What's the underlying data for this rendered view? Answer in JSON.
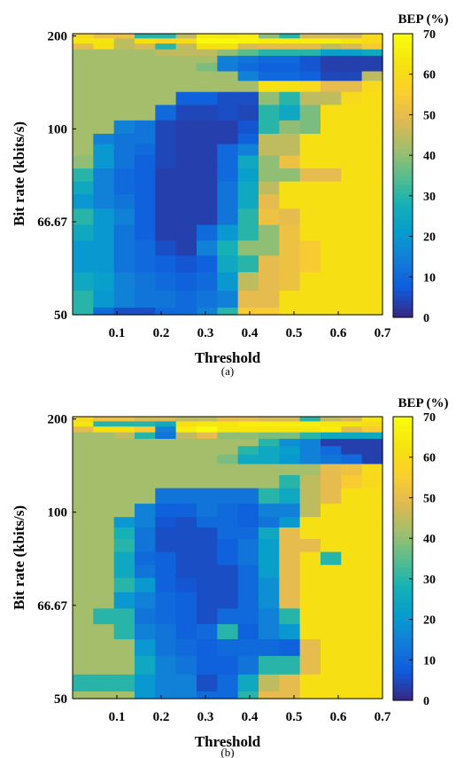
{
  "chart_data": [
    {
      "type": "heatmap",
      "panel_label": "(a)",
      "xlabel": "Threshold",
      "ylabel": "Bit rate (kbits/s)",
      "colorbar_title": "BEP (%)",
      "xlim": [
        0.0,
        0.7
      ],
      "ylim": [
        50,
        205
      ],
      "y_scale": "reciprocal",
      "clim": [
        0,
        70
      ],
      "colormap": "parula",
      "grid": false,
      "x_ticks": [
        0.1,
        0.2,
        0.3,
        0.4,
        0.5,
        0.6,
        0.7
      ],
      "x_tick_labels": [
        "0.1",
        "0.2",
        "0.3",
        "0.4",
        "0.5",
        "0.6",
        "0.7"
      ],
      "y_ticks": [
        50,
        66.67,
        100,
        200
      ],
      "y_tick_labels": [
        "50",
        "66.67",
        "100",
        "200"
      ],
      "colorbar_ticks": [
        0,
        10,
        20,
        30,
        40,
        50,
        60,
        70
      ],
      "colorbar_tick_labels": [
        "0",
        "10",
        "20",
        "30",
        "40",
        "50",
        "60",
        "70"
      ],
      "rows": [
        {
          "bit_rate": 200,
          "bep": [
            60,
            52,
            52,
            30,
            30,
            45,
            65,
            64,
            66,
            40,
            30,
            48,
            48,
            48,
            60
          ]
        },
        {
          "bit_rate": 190,
          "bep": [
            64,
            64,
            45,
            62,
            58,
            60,
            70,
            70,
            68,
            66,
            66,
            66,
            66,
            64,
            60
          ]
        },
        {
          "bit_rate": 180,
          "bep": [
            50,
            62,
            45,
            48,
            30,
            45,
            62,
            62,
            48,
            50,
            50,
            50,
            45,
            48,
            55
          ]
        },
        {
          "bit_rate": 170,
          "bep": [
            42,
            42,
            42,
            42,
            45,
            45,
            45,
            40,
            35,
            30,
            30,
            30,
            22,
            22,
            25
          ]
        },
        {
          "bit_rate": 160,
          "bep": [
            42,
            42,
            42,
            42,
            42,
            42,
            42,
            15,
            12,
            10,
            10,
            6,
            3,
            3,
            3
          ]
        },
        {
          "bit_rate": 150,
          "bep": [
            42,
            42,
            42,
            42,
            42,
            42,
            38,
            14,
            10,
            8,
            8,
            6,
            3,
            3,
            3
          ]
        },
        {
          "bit_rate": 140,
          "bep": [
            42,
            42,
            42,
            42,
            42,
            42,
            42,
            42,
            15,
            10,
            10,
            8,
            4,
            4,
            45
          ]
        },
        {
          "bit_rate": 130,
          "bep": [
            42,
            42,
            42,
            42,
            42,
            42,
            42,
            42,
            42,
            62,
            62,
            60,
            50,
            50,
            60
          ]
        },
        {
          "bit_rate": 120,
          "bep": [
            42,
            42,
            42,
            42,
            42,
            8,
            8,
            5,
            5,
            40,
            30,
            45,
            45,
            60,
            62
          ]
        },
        {
          "bit_rate": 110,
          "bep": [
            42,
            42,
            42,
            42,
            10,
            4,
            4,
            5,
            4,
            30,
            25,
            38,
            62,
            62,
            62
          ]
        },
        {
          "bit_rate": 100,
          "bep": [
            42,
            42,
            15,
            12,
            4,
            3,
            3,
            3,
            6,
            30,
            40,
            38,
            62,
            62,
            62
          ]
        },
        {
          "bit_rate": 95,
          "bep": [
            42,
            15,
            12,
            12,
            4,
            3,
            3,
            3,
            8,
            45,
            45,
            62,
            62,
            62,
            62
          ]
        },
        {
          "bit_rate": 90,
          "bep": [
            42,
            20,
            12,
            10,
            4,
            3,
            3,
            10,
            15,
            45,
            45,
            62,
            62,
            62,
            62
          ]
        },
        {
          "bit_rate": 85,
          "bep": [
            40,
            20,
            12,
            8,
            4,
            3,
            3,
            10,
            25,
            40,
            52,
            62,
            62,
            62,
            62
          ]
        },
        {
          "bit_rate": 80,
          "bep": [
            30,
            15,
            10,
            8,
            3,
            3,
            3,
            10,
            22,
            40,
            40,
            50,
            50,
            62,
            62
          ]
        },
        {
          "bit_rate": 76,
          "bep": [
            25,
            15,
            10,
            8,
            3,
            3,
            3,
            12,
            25,
            45,
            62,
            62,
            62,
            62,
            62
          ]
        },
        {
          "bit_rate": 72,
          "bep": [
            20,
            15,
            12,
            8,
            3,
            3,
            3,
            12,
            25,
            50,
            62,
            62,
            62,
            62,
            62
          ]
        },
        {
          "bit_rate": 68,
          "bep": [
            30,
            20,
            15,
            8,
            3,
            3,
            3,
            12,
            30,
            52,
            50,
            62,
            62,
            62,
            62
          ]
        },
        {
          "bit_rate": 64,
          "bep": [
            25,
            20,
            12,
            8,
            3,
            3,
            10,
            20,
            30,
            40,
            52,
            62,
            62,
            62,
            62
          ]
        },
        {
          "bit_rate": 61,
          "bep": [
            20,
            20,
            12,
            10,
            5,
            3,
            15,
            28,
            40,
            40,
            52,
            55,
            62,
            62,
            62
          ]
        },
        {
          "bit_rate": 58,
          "bep": [
            20,
            20,
            12,
            10,
            8,
            6,
            8,
            25,
            30,
            50,
            52,
            55,
            62,
            62,
            62
          ]
        },
        {
          "bit_rate": 55,
          "bep": [
            25,
            22,
            15,
            12,
            10,
            8,
            10,
            20,
            45,
            50,
            52,
            62,
            62,
            62,
            62
          ]
        },
        {
          "bit_rate": 52,
          "bep": [
            30,
            20,
            15,
            12,
            12,
            10,
            12,
            15,
            50,
            50,
            62,
            62,
            62,
            62,
            62
          ]
        },
        {
          "bit_rate": 50,
          "bep": [
            30,
            10,
            5,
            5,
            10,
            10,
            15,
            30,
            55,
            55,
            62,
            62,
            62,
            62,
            62
          ]
        }
      ]
    },
    {
      "type": "heatmap",
      "panel_label": "(b)",
      "xlabel": "Threshold",
      "ylabel": "Bit rate (kbits/s)",
      "colorbar_title": "BEP (%)",
      "xlim": [
        0.0,
        0.7
      ],
      "ylim": [
        50,
        205
      ],
      "y_scale": "reciprocal",
      "clim": [
        0,
        70
      ],
      "colormap": "parula",
      "grid": false,
      "x_ticks": [
        0.1,
        0.2,
        0.3,
        0.4,
        0.5,
        0.6,
        0.7
      ],
      "x_tick_labels": [
        "0.1",
        "0.2",
        "0.3",
        "0.4",
        "0.5",
        "0.6",
        "0.7"
      ],
      "y_ticks": [
        50,
        66.67,
        100,
        200
      ],
      "y_tick_labels": [
        "50",
        "66.67",
        "100",
        "200"
      ],
      "colorbar_ticks": [
        0,
        10,
        20,
        30,
        40,
        50,
        60,
        70
      ],
      "colorbar_tick_labels": [
        "0",
        "10",
        "20",
        "30",
        "40",
        "50",
        "60",
        "70"
      ],
      "rows": [
        {
          "bit_rate": 200,
          "bep": [
            60,
            52,
            52,
            48,
            48,
            45,
            45,
            50,
            50,
            48,
            48,
            30,
            45,
            48,
            64
          ]
        },
        {
          "bit_rate": 190,
          "bep": [
            64,
            30,
            30,
            30,
            25,
            62,
            64,
            64,
            66,
            66,
            66,
            66,
            64,
            64,
            60
          ]
        },
        {
          "bit_rate": 180,
          "bep": [
            50,
            62,
            62,
            55,
            15,
            66,
            70,
            64,
            64,
            64,
            64,
            64,
            66,
            50,
            55
          ]
        },
        {
          "bit_rate": 170,
          "bep": [
            42,
            42,
            45,
            30,
            12,
            45,
            50,
            40,
            40,
            38,
            38,
            30,
            25,
            25,
            25
          ]
        },
        {
          "bit_rate": 160,
          "bep": [
            42,
            42,
            42,
            42,
            42,
            42,
            42,
            42,
            42,
            30,
            18,
            15,
            3,
            3,
            3
          ]
        },
        {
          "bit_rate": 150,
          "bep": [
            42,
            42,
            42,
            42,
            42,
            42,
            42,
            42,
            30,
            25,
            22,
            15,
            10,
            3,
            3
          ]
        },
        {
          "bit_rate": 140,
          "bep": [
            42,
            42,
            42,
            42,
            42,
            42,
            42,
            38,
            25,
            25,
            20,
            15,
            12,
            10,
            3
          ]
        },
        {
          "bit_rate": 130,
          "bep": [
            42,
            42,
            42,
            42,
            42,
            42,
            42,
            42,
            42,
            42,
            42,
            42,
            50,
            52,
            60
          ]
        },
        {
          "bit_rate": 120,
          "bep": [
            42,
            42,
            42,
            42,
            42,
            42,
            42,
            42,
            42,
            42,
            30,
            45,
            50,
            55,
            60
          ]
        },
        {
          "bit_rate": 110,
          "bep": [
            42,
            42,
            42,
            42,
            12,
            12,
            12,
            12,
            12,
            30,
            25,
            45,
            50,
            62,
            62
          ]
        },
        {
          "bit_rate": 100,
          "bep": [
            42,
            42,
            42,
            15,
            8,
            8,
            12,
            10,
            8,
            15,
            15,
            45,
            62,
            62,
            62
          ]
        },
        {
          "bit_rate": 95,
          "bep": [
            42,
            42,
            20,
            15,
            6,
            5,
            10,
            10,
            8,
            12,
            20,
            62,
            62,
            62,
            62
          ]
        },
        {
          "bit_rate": 90,
          "bep": [
            42,
            42,
            28,
            12,
            5,
            5,
            5,
            10,
            10,
            25,
            50,
            62,
            62,
            62,
            62
          ]
        },
        {
          "bit_rate": 85,
          "bep": [
            42,
            42,
            30,
            12,
            5,
            5,
            5,
            8,
            12,
            22,
            50,
            50,
            62,
            62,
            62
          ]
        },
        {
          "bit_rate": 80,
          "bep": [
            42,
            42,
            25,
            10,
            8,
            5,
            5,
            8,
            12,
            22,
            50,
            62,
            30,
            62,
            62
          ]
        },
        {
          "bit_rate": 76,
          "bep": [
            42,
            42,
            25,
            12,
            8,
            5,
            5,
            5,
            10,
            22,
            50,
            62,
            62,
            62,
            62
          ]
        },
        {
          "bit_rate": 72,
          "bep": [
            42,
            42,
            30,
            20,
            8,
            6,
            5,
            5,
            10,
            18,
            50,
            62,
            62,
            62,
            62
          ]
        },
        {
          "bit_rate": 68,
          "bep": [
            42,
            42,
            20,
            15,
            10,
            8,
            5,
            5,
            10,
            18,
            50,
            62,
            62,
            62,
            62
          ]
        },
        {
          "bit_rate": 64,
          "bep": [
            42,
            30,
            30,
            12,
            10,
            8,
            5,
            10,
            10,
            15,
            30,
            62,
            62,
            62,
            62
          ]
        },
        {
          "bit_rate": 61,
          "bep": [
            42,
            42,
            30,
            15,
            12,
            8,
            10,
            30,
            8,
            15,
            20,
            62,
            62,
            62,
            62
          ]
        },
        {
          "bit_rate": 58,
          "bep": [
            42,
            42,
            42,
            20,
            12,
            10,
            8,
            10,
            10,
            10,
            8,
            50,
            62,
            62,
            62
          ]
        },
        {
          "bit_rate": 55,
          "bep": [
            42,
            42,
            42,
            25,
            15,
            12,
            8,
            8,
            12,
            30,
            30,
            50,
            62,
            62,
            62
          ]
        },
        {
          "bit_rate": 52,
          "bep": [
            30,
            30,
            30,
            20,
            15,
            15,
            5,
            10,
            25,
            45,
            50,
            62,
            62,
            62,
            62
          ]
        },
        {
          "bit_rate": 50,
          "bep": [
            42,
            42,
            42,
            20,
            15,
            15,
            10,
            10,
            30,
            50,
            50,
            62,
            62,
            62,
            62
          ]
        }
      ]
    }
  ]
}
